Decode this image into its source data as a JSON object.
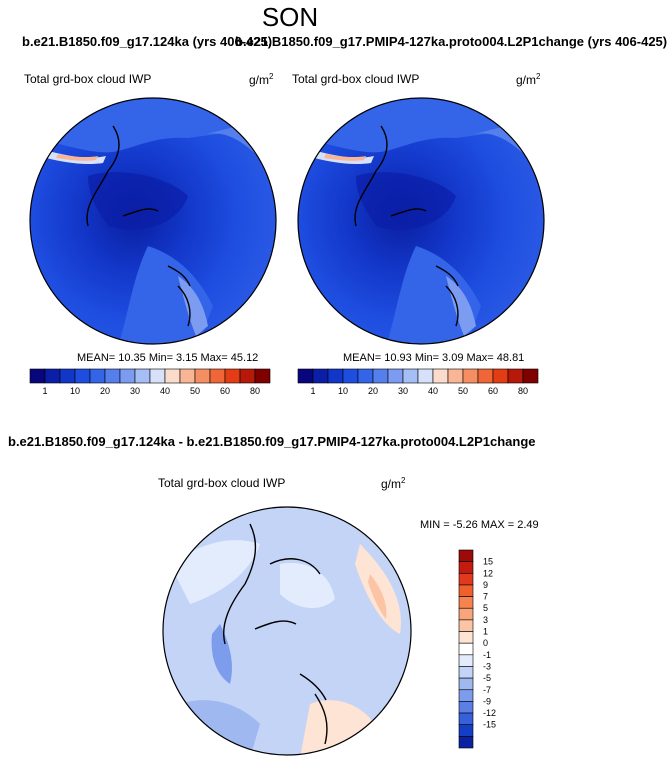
{
  "season": "SON",
  "top_title_left": "b.e21.B1850.f09_g17.124ka (yrs 406-425)",
  "top_title_right": "b.e21.B1850.f09_g17.PMIP4-127ka.proto004.L2P1change (yrs 406-425)",
  "diff_title": "b.e21.B1850.f09_g17.124ka - b.e21.B1850.f09_g17.PMIP4-127ka.proto004.L2P1change",
  "panel_label": "Total grd-box cloud IWP",
  "units_base": "g/m",
  "units_exp": "2",
  "panel_a": {
    "stats": "MEAN=  10.35  Min=   3.15  Max=  45.12"
  },
  "panel_b": {
    "stats": "MEAN=  10.93  Min=   3.09  Max=  48.81"
  },
  "panel_diff": {
    "stats": "MIN =  -5.26 MAX =   2.49"
  },
  "colorbar_abs": {
    "labels": [
      "1",
      "10",
      "20",
      "30",
      "40",
      "50",
      "60",
      "80"
    ],
    "colors": [
      "#08067d",
      "#0b1ea8",
      "#1236c8",
      "#1e4ee0",
      "#3464e8",
      "#567fee",
      "#7c9cf2",
      "#a5bef6",
      "#d7e2fa",
      "#fbdccb",
      "#f8b696",
      "#f58e62",
      "#f06637",
      "#e43d15",
      "#b6180a",
      "#800000"
    ]
  },
  "colorbar_diff": {
    "labels": [
      "15",
      "12",
      "9",
      "7",
      "5",
      "3",
      "1",
      "0",
      "-1",
      "-3",
      "-5",
      "-7",
      "-9",
      "-12",
      "-15"
    ],
    "colors": [
      "#9c0a0a",
      "#c41b10",
      "#e0391d",
      "#f0602c",
      "#f68450",
      "#f9a47a",
      "#fbc4a4",
      "#fde4d4",
      "#ffffff",
      "#e3ecfc",
      "#c3d4f7",
      "#9fb8f0",
      "#7d9cec",
      "#5b7fe6",
      "#3660dc",
      "#143ec6",
      "#0a22a0"
    ]
  },
  "chart_data": [
    {
      "type": "heatmap",
      "title": "b.e21.B1850.f09_g17.124ka (yrs 406-425)",
      "season": "SON",
      "variable": "Total grd-box cloud IWP",
      "units": "g/m2",
      "projection": "north polar stereographic",
      "stats": {
        "mean": 10.35,
        "min": 3.15,
        "max": 45.12
      },
      "contour_levels": [
        1,
        10,
        20,
        30,
        40,
        50,
        60,
        80
      ]
    },
    {
      "type": "heatmap",
      "title": "b.e21.B1850.f09_g17.PMIP4-127ka.proto004.L2P1change (yrs 406-425)",
      "season": "SON",
      "variable": "Total grd-box cloud IWP",
      "units": "g/m2",
      "projection": "north polar stereographic",
      "stats": {
        "mean": 10.93,
        "min": 3.09,
        "max": 48.81
      },
      "contour_levels": [
        1,
        10,
        20,
        30,
        40,
        50,
        60,
        80
      ]
    },
    {
      "type": "heatmap",
      "title": "b.e21.B1850.f09_g17.124ka - b.e21.B1850.f09_g17.PMIP4-127ka.proto004.L2P1change",
      "season": "SON",
      "variable": "Total grd-box cloud IWP",
      "units": "g/m2",
      "projection": "north polar stereographic",
      "stats": {
        "min": -5.26,
        "max": 2.49
      },
      "contour_levels": [
        -15,
        -12,
        -9,
        -7,
        -5,
        -3,
        -1,
        0,
        1,
        3,
        5,
        7,
        9,
        12,
        15
      ]
    }
  ]
}
